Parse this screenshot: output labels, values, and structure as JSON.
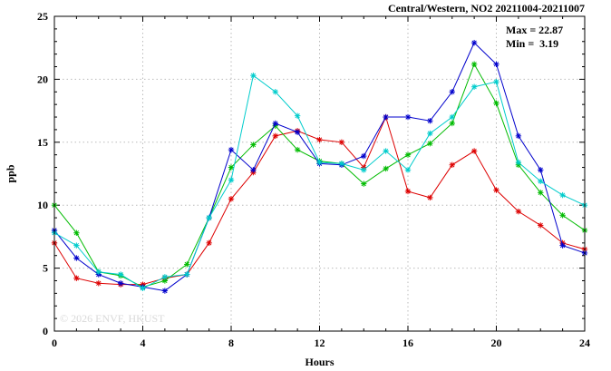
{
  "chart_data": {
    "type": "line",
    "title": "Central/Western, NO2 20211004-20211007",
    "xlabel": "Hours",
    "ylabel": "ppb",
    "xlim": [
      0,
      24
    ],
    "ylim": [
      0,
      25
    ],
    "xticks": [
      0,
      4,
      8,
      12,
      16,
      20,
      24
    ],
    "yticks": [
      0,
      5,
      10,
      15,
      20,
      25
    ],
    "grid": true,
    "legend_position": "none",
    "watermark": "© 2026 ENVF, HKUST",
    "annotations": {
      "max": "Max = 22.87",
      "min": "Min =  3.19"
    },
    "x": [
      0,
      1,
      2,
      3,
      4,
      5,
      6,
      7,
      8,
      9,
      10,
      11,
      12,
      13,
      14,
      15,
      16,
      17,
      18,
      19,
      20,
      21,
      22,
      23,
      24
    ],
    "series": [
      {
        "name": "red",
        "color": "#dd0000",
        "values": [
          7.0,
          4.2,
          3.8,
          3.7,
          3.7,
          4.2,
          4.5,
          7.0,
          10.5,
          12.6,
          15.5,
          15.9,
          15.2,
          15.0,
          13.0,
          17.0,
          11.1,
          10.6,
          13.2,
          14.3,
          11.2,
          9.5,
          8.4,
          7.0,
          6.5
        ]
      },
      {
        "name": "green",
        "color": "#00bb00",
        "values": [
          10.0,
          7.8,
          4.7,
          4.4,
          3.5,
          4.0,
          5.3,
          9.0,
          13.0,
          14.8,
          16.3,
          14.4,
          13.5,
          13.3,
          11.7,
          12.9,
          14.0,
          14.9,
          16.5,
          21.2,
          18.1,
          13.2,
          11.0,
          9.2,
          8.0
        ]
      },
      {
        "name": "blue",
        "color": "#0000cc",
        "values": [
          8.0,
          5.8,
          4.5,
          3.8,
          3.5,
          3.2,
          4.5,
          9.0,
          14.4,
          12.8,
          16.5,
          15.8,
          13.3,
          13.2,
          13.9,
          17.0,
          17.0,
          16.7,
          19.0,
          22.9,
          21.2,
          15.5,
          12.8,
          6.8,
          6.2
        ]
      },
      {
        "name": "cyan",
        "color": "#00cccc",
        "values": [
          7.8,
          6.8,
          4.7,
          4.5,
          3.4,
          4.3,
          4.5,
          9.0,
          12.0,
          20.3,
          19.0,
          17.1,
          13.4,
          13.3,
          12.8,
          14.3,
          12.8,
          15.7,
          17.0,
          19.4,
          19.8,
          13.4,
          11.9,
          10.8,
          10.0
        ]
      }
    ]
  }
}
